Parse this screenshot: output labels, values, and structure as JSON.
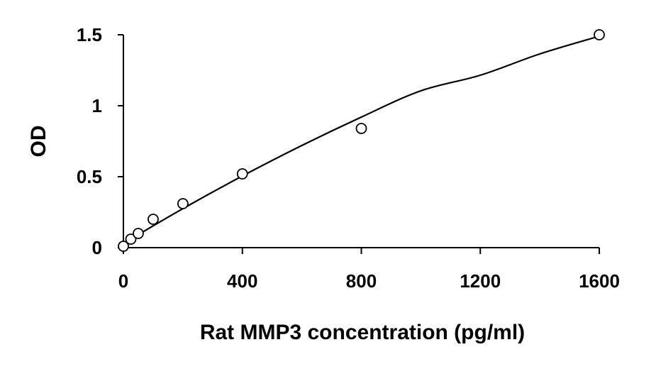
{
  "chart_data": {
    "type": "scatter",
    "title": "",
    "xlabel": "Rat MMP3 concentration (pg/ml)",
    "ylabel": "OD",
    "xlim": [
      0,
      1600
    ],
    "ylim": [
      0,
      1.5
    ],
    "x_ticks": [
      0,
      400,
      800,
      1200,
      1600
    ],
    "x_tick_labels": [
      "0",
      "400",
      "800",
      "1200",
      "1600"
    ],
    "y_ticks": [
      0,
      0.5,
      1,
      1.5
    ],
    "y_tick_labels": [
      "0",
      "0.5",
      "1",
      "1.5"
    ],
    "grid": false,
    "legend": "none",
    "series": [
      {
        "marker": "open-circle",
        "points": [
          {
            "x": 0,
            "y": 0.01
          },
          {
            "x": 25,
            "y": 0.06
          },
          {
            "x": 50,
            "y": 0.1
          },
          {
            "x": 100,
            "y": 0.2
          },
          {
            "x": 200,
            "y": 0.31
          },
          {
            "x": 400,
            "y": 0.52
          },
          {
            "x": 800,
            "y": 0.84
          },
          {
            "x": 1600,
            "y": 1.5
          }
        ]
      }
    ],
    "fit_curve": {
      "type": "quadratic",
      "x": [
        0,
        200,
        400,
        600,
        800,
        1000,
        1200,
        1400,
        1600
      ],
      "y": [
        0.03,
        0.275,
        0.505,
        0.72,
        0.92,
        1.105,
        1.215,
        1.365,
        1.49
      ]
    },
    "colors": {
      "marks": "#000000",
      "background": "#ffffff"
    }
  }
}
